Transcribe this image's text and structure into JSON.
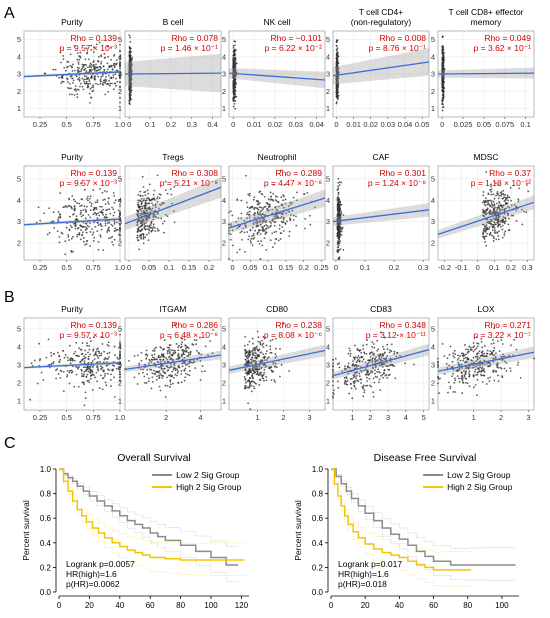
{
  "sections": {
    "a": "A",
    "b": "B",
    "c": "C"
  },
  "chart_data": [
    {
      "type": "scatter",
      "section": "A",
      "title": "Purity",
      "xticks": [
        "0.25",
        "0.5",
        "0.75",
        "1.0"
      ],
      "xlim": [
        0.1,
        1.0
      ],
      "yticks": [
        "1",
        "2",
        "3",
        "4",
        "5"
      ],
      "ylim": [
        0.5,
        5.5
      ],
      "rho": "Rho = 0.139",
      "p_text": "p = 9.57 × 10⁻³",
      "fit": [
        [
          0.1,
          2.85
        ],
        [
          1.0,
          3.12
        ]
      ],
      "ci": 0.06,
      "x_center": 0.75,
      "x_spread": 0.18,
      "y_center": 3.0,
      "y_spread": 0.65,
      "n_points": 320
    },
    {
      "type": "scatter",
      "section": "A",
      "title": "B cell",
      "xticks": [
        "0",
        "0.1",
        "0.2",
        "0.3",
        "0.4"
      ],
      "xlim": [
        -0.02,
        0.44
      ],
      "yticks": [
        "1",
        "2",
        "3",
        "4",
        "5"
      ],
      "ylim": [
        0.5,
        5.5
      ],
      "rho": "Rho = 0.078",
      "p_text": "p = 1.46 × 10⁻¹",
      "fit": [
        [
          -0.02,
          3.0
        ],
        [
          0.44,
          3.05
        ]
      ],
      "ci": 0.7,
      "x_center": 0.0,
      "x_spread": 0.005,
      "y_center": 3.0,
      "y_spread": 0.75,
      "n_points": 300
    },
    {
      "type": "scatter",
      "section": "A",
      "title": "NK cell",
      "xticks": [
        "0",
        "0.01",
        "0.02",
        "0.03",
        "0.04"
      ],
      "xlim": [
        -0.002,
        0.044
      ],
      "yticks": [
        "1",
        "2",
        "3",
        "4",
        "5"
      ],
      "ylim": [
        0.5,
        5.5
      ],
      "rho": "Rho = −0.101",
      "p_text": "p = 6.22 × 10⁻²",
      "fit": [
        [
          -0.002,
          3.05
        ],
        [
          0.044,
          2.65
        ]
      ],
      "ci": 0.3,
      "x_center": 0.0,
      "x_spread": 0.0006,
      "y_center": 3.0,
      "y_spread": 0.75,
      "n_points": 300
    },
    {
      "type": "scatter",
      "section": "A",
      "title": "T cell CD4+ (non-regulatory)",
      "title_lines": [
        "T cell CD4+",
        "(non-regulatory)"
      ],
      "xticks": [
        "0",
        "0.01",
        "0.02",
        "0.03",
        "0.04",
        "0.05"
      ],
      "xlim": [
        -0.002,
        0.054
      ],
      "yticks": [
        "1",
        "2",
        "3",
        "4",
        "5"
      ],
      "ylim": [
        0.5,
        5.5
      ],
      "rho": "Rho = 0.008",
      "p_text": "p = 8.76 × 10⁻¹",
      "fit": [
        [
          -0.002,
          2.9
        ],
        [
          0.054,
          3.7
        ]
      ],
      "ci": 0.5,
      "x_center": 0.0,
      "x_spread": 0.0005,
      "y_center": 3.0,
      "y_spread": 0.75,
      "n_points": 300
    },
    {
      "type": "scatter",
      "section": "A",
      "title": "T cell CD8+ effector memory",
      "title_lines": [
        "T cell CD8+ effector",
        "memory"
      ],
      "xticks": [
        "0",
        "0.025",
        "0.05",
        "0.075",
        "0.1"
      ],
      "xlim": [
        -0.005,
        0.11
      ],
      "yticks": [
        "1",
        "2",
        "3",
        "4",
        "5"
      ],
      "ylim": [
        0.5,
        5.5
      ],
      "rho": "Rho = 0.049",
      "p_text": "p = 3.62 × 10⁻¹",
      "fit": [
        [
          -0.005,
          3.0
        ],
        [
          0.11,
          3.05
        ]
      ],
      "ci": 0.2,
      "x_center": 0.0,
      "x_spread": 0.001,
      "y_center": 3.0,
      "y_spread": 0.75,
      "n_points": 300
    },
    {
      "type": "scatter",
      "section": "A",
      "title": "Purity",
      "xticks": [
        "0.25",
        "0.5",
        "0.75",
        "1.0"
      ],
      "xlim": [
        0.1,
        1.0
      ],
      "yticks": [
        "2",
        "3",
        "4",
        "5"
      ],
      "ylim": [
        1.2,
        5.6
      ],
      "rho": "Rho = 0.139",
      "p_text": "p = 9.57 × 10⁻³",
      "fit": [
        [
          0.1,
          2.85
        ],
        [
          1.0,
          3.12
        ]
      ],
      "ci": 0.06,
      "x_center": 0.72,
      "x_spread": 0.2,
      "y_center": 3.0,
      "y_spread": 0.6,
      "n_points": 300
    },
    {
      "type": "scatter",
      "section": "A",
      "title": "Tregs",
      "xticks": [
        "0",
        "0.05",
        "0.1",
        "0.15",
        "0.2"
      ],
      "xlim": [
        -0.01,
        0.23
      ],
      "yticks": [
        "2",
        "3",
        "4",
        "5"
      ],
      "ylim": [
        1.2,
        5.6
      ],
      "rho": "Rho = 0.308",
      "p_text": "p = 5.21 × 10⁻⁹",
      "fit": [
        [
          -0.01,
          2.9
        ],
        [
          0.23,
          4.6
        ]
      ],
      "ci": 0.3,
      "x_center": 0.02,
      "x_spread": 0.035,
      "y_center": 3.0,
      "y_spread": 0.6,
      "n_points": 280
    },
    {
      "type": "scatter",
      "section": "A",
      "title": "Neutrophil",
      "xticks": [
        "0",
        "0.05",
        "0.1",
        "0.15",
        "0.2",
        "0.25"
      ],
      "xlim": [
        -0.01,
        0.26
      ],
      "yticks": [
        "2",
        "3",
        "4",
        "5"
      ],
      "ylim": [
        1.2,
        5.6
      ],
      "rho": "Rho = 0.289",
      "p_text": "p = 4.47 × 10⁻⁸",
      "fit": [
        [
          -0.01,
          2.7
        ],
        [
          0.26,
          4.1
        ]
      ],
      "ci": 0.25,
      "x_center": 0.09,
      "x_spread": 0.045,
      "y_center": 3.1,
      "y_spread": 0.6,
      "n_points": 320
    },
    {
      "type": "scatter",
      "section": "A",
      "title": "CAF",
      "xticks": [
        "0",
        "0.1",
        "0.2",
        "0.3"
      ],
      "xlim": [
        -0.01,
        0.32
      ],
      "yticks": [
        "2",
        "3",
        "4",
        "5"
      ],
      "ylim": [
        1.2,
        5.6
      ],
      "rho": "Rho = 0.301",
      "p_text": "p = 1.24 × 10⁻⁸",
      "fit": [
        [
          -0.01,
          3.0
        ],
        [
          0.32,
          3.55
        ]
      ],
      "ci": 0.2,
      "x_center": 0.005,
      "x_spread": 0.006,
      "y_center": 3.0,
      "y_spread": 0.65,
      "n_points": 300
    },
    {
      "type": "scatter",
      "section": "A",
      "title": "MDSC",
      "xticks": [
        "-0.2",
        "-0.1",
        "0",
        "0.1",
        "0.2",
        "0.3"
      ],
      "xlim": [
        -0.24,
        0.34
      ],
      "yticks": [
        "2",
        "3",
        "4",
        "5"
      ],
      "ylim": [
        1.2,
        5.6
      ],
      "rho": "Rho = 0.37",
      "p_text": "p = 1.18 × 10⁻¹²",
      "fit": [
        [
          -0.24,
          2.4
        ],
        [
          0.34,
          3.9
        ]
      ],
      "ci": 0.2,
      "x_center": 0.03,
      "x_spread": 0.1,
      "y_center": 3.1,
      "y_spread": 0.6,
      "n_points": 320
    },
    {
      "type": "scatter",
      "section": "B",
      "title": "Purity",
      "xticks": [
        "0.25",
        "0.5",
        "0.75",
        "1.0"
      ],
      "xlim": [
        0.1,
        1.0
      ],
      "yticks": [
        "1",
        "2",
        "3",
        "4",
        "5"
      ],
      "ylim": [
        0.5,
        5.6
      ],
      "rho": "Rho = 0.139",
      "p_text": "p = 9.57 × 10⁻³",
      "fit": [
        [
          0.1,
          2.85
        ],
        [
          1.0,
          3.12
        ]
      ],
      "ci": 0.06,
      "x_center": 0.72,
      "x_spread": 0.2,
      "y_center": 3.0,
      "y_spread": 0.65,
      "n_points": 300
    },
    {
      "type": "scatter",
      "section": "B",
      "title": "ITGAM",
      "xticks": [
        "2",
        "4"
      ],
      "xlim": [
        -0.4,
        5.2
      ],
      "yticks": [
        "1",
        "2",
        "3",
        "4",
        "5"
      ],
      "ylim": [
        0.5,
        5.6
      ],
      "rho": "Rho = 0.286",
      "p_text": "p = 6.48 × 10⁻⁸",
      "fit": [
        [
          -0.4,
          2.75
        ],
        [
          5.2,
          3.55
        ]
      ],
      "ci": 0.15,
      "x_center": 2.2,
      "x_spread": 1.0,
      "y_center": 3.0,
      "y_spread": 0.6,
      "n_points": 320
    },
    {
      "type": "scatter",
      "section": "B",
      "title": "CD80",
      "xticks": [
        "1",
        "2",
        "3"
      ],
      "xlim": [
        -0.1,
        3.6
      ],
      "yticks": [
        "1",
        "2",
        "3",
        "4",
        "5"
      ],
      "ylim": [
        0.5,
        5.6
      ],
      "rho": "Rho = 0.238",
      "p_text": "p = 8.08 × 10⁻⁶",
      "fit": [
        [
          -0.1,
          2.7
        ],
        [
          3.6,
          3.8
        ]
      ],
      "ci": 0.2,
      "x_center": 0.5,
      "x_spread": 0.6,
      "y_center": 3.0,
      "y_spread": 0.65,
      "n_points": 320
    },
    {
      "type": "scatter",
      "section": "B",
      "title": "CD83",
      "xticks": [
        "1",
        "2",
        "3",
        "4",
        "5"
      ],
      "xlim": [
        -0.1,
        5.3
      ],
      "yticks": [
        "1",
        "2",
        "3",
        "4",
        "5"
      ],
      "ylim": [
        0.5,
        5.6
      ],
      "rho": "Rho = 0.348",
      "p_text": "p = 3.12 × 10⁻¹¹",
      "fit": [
        [
          -0.1,
          2.4
        ],
        [
          5.3,
          3.85
        ]
      ],
      "ci": 0.2,
      "x_center": 1.8,
      "x_spread": 0.9,
      "y_center": 3.0,
      "y_spread": 0.6,
      "n_points": 320
    },
    {
      "type": "scatter",
      "section": "B",
      "title": "LOX",
      "xticks": [
        "1",
        "2",
        "3"
      ],
      "xlim": [
        -0.3,
        3.2
      ],
      "yticks": [
        "1",
        "2",
        "3",
        "4",
        "5"
      ],
      "ylim": [
        0.5,
        5.6
      ],
      "rho": "Rho = 0.271",
      "p_text": "p = 3.22 × 10⁻⁷",
      "fit": [
        [
          -0.3,
          2.65
        ],
        [
          3.2,
          3.7
        ]
      ],
      "ci": 0.2,
      "x_center": 1.1,
      "x_spread": 0.65,
      "y_center": 3.0,
      "y_spread": 0.6,
      "n_points": 320
    },
    {
      "type": "line",
      "section": "C",
      "subtype": "kaplan-meier",
      "title": "Overall Survival",
      "ylabel": "Percent survival",
      "xticks": [
        "0",
        "20",
        "40",
        "60",
        "80",
        "100",
        "120"
      ],
      "xlim": [
        0,
        125
      ],
      "yticks": [
        "0.0",
        "0.2",
        "0.4",
        "0.6",
        "0.8",
        "1.0"
      ],
      "ylim": [
        0,
        1
      ],
      "series": [
        {
          "name": "Low 2 Sig Group",
          "color": "#8c8c8c",
          "x": [
            0,
            3,
            6,
            9,
            12,
            16,
            20,
            25,
            30,
            35,
            40,
            45,
            50,
            55,
            60,
            65,
            70,
            80,
            90,
            100,
            110,
            118
          ],
          "y": [
            1.0,
            0.96,
            0.93,
            0.9,
            0.86,
            0.82,
            0.78,
            0.74,
            0.7,
            0.66,
            0.62,
            0.58,
            0.55,
            0.52,
            0.48,
            0.45,
            0.42,
            0.38,
            0.33,
            0.28,
            0.22,
            0.22
          ]
        },
        {
          "name": "High 2 Sig Group",
          "color": "#f5c400",
          "x": [
            0,
            3,
            6,
            9,
            12,
            15,
            18,
            22,
            26,
            30,
            35,
            40,
            45,
            50,
            55,
            60,
            70,
            80,
            90,
            100,
            122
          ],
          "y": [
            1.0,
            0.9,
            0.82,
            0.74,
            0.67,
            0.62,
            0.57,
            0.52,
            0.48,
            0.44,
            0.4,
            0.37,
            0.34,
            0.32,
            0.3,
            0.28,
            0.27,
            0.26,
            0.26,
            0.26,
            0.26
          ]
        }
      ],
      "stats": [
        "Logrank p=0.0057",
        "HR(high)=1.6",
        "p(HR)=0.0062"
      ],
      "legend_position": "top-right"
    },
    {
      "type": "line",
      "section": "C",
      "subtype": "kaplan-meier",
      "title": "Disease Free Survival",
      "ylabel": "Percent survival",
      "xticks": [
        "0",
        "20",
        "40",
        "60",
        "80",
        "100"
      ],
      "xlim": [
        0,
        110
      ],
      "yticks": [
        "0.0",
        "0.2",
        "0.4",
        "0.6",
        "0.8",
        "1.0"
      ],
      "ylim": [
        0,
        1
      ],
      "series": [
        {
          "name": "Low 2 Sig Group",
          "color": "#8c8c8c",
          "x": [
            0,
            3,
            6,
            9,
            12,
            16,
            20,
            25,
            30,
            35,
            40,
            45,
            50,
            55,
            60,
            70,
            80,
            90,
            108
          ],
          "y": [
            1.0,
            0.94,
            0.88,
            0.82,
            0.76,
            0.7,
            0.64,
            0.58,
            0.52,
            0.47,
            0.43,
            0.38,
            0.33,
            0.29,
            0.25,
            0.22,
            0.22,
            0.22,
            0.22
          ]
        },
        {
          "name": "High 2 Sig Group",
          "color": "#f5c400",
          "x": [
            0,
            2,
            4,
            6,
            8,
            10,
            13,
            16,
            20,
            25,
            30,
            35,
            40,
            45,
            50,
            55,
            60,
            65,
            82
          ],
          "y": [
            1.0,
            0.88,
            0.78,
            0.7,
            0.62,
            0.55,
            0.49,
            0.44,
            0.39,
            0.35,
            0.32,
            0.3,
            0.28,
            0.25,
            0.22,
            0.2,
            0.18,
            0.18,
            0.18
          ]
        }
      ],
      "stats": [
        "Logrank p=0.017",
        "HR(high)=1.6",
        "p(HR)=0.018"
      ],
      "legend_position": "top-right"
    }
  ]
}
